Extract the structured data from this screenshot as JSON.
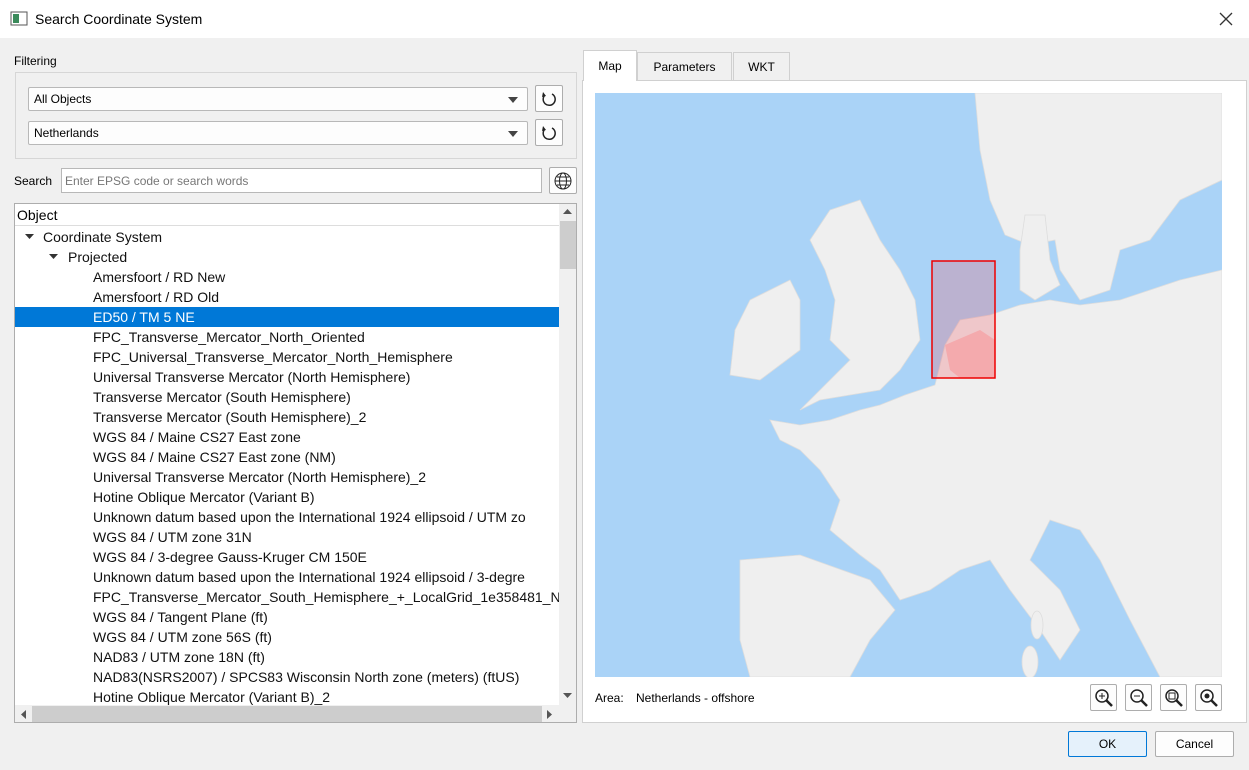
{
  "window": {
    "title": "Search Coordinate System"
  },
  "filtering": {
    "label": "Filtering",
    "object_type": "All Objects",
    "region": "Netherlands"
  },
  "search": {
    "label": "Search",
    "placeholder": "Enter EPSG code or search words"
  },
  "tree": {
    "header": "Object",
    "root": "Coordinate System",
    "group": "Projected",
    "items": [
      "Amersfoort / RD New",
      "Amersfoort / RD Old",
      "ED50 / TM 5 NE",
      "FPC_Transverse_Mercator_North_Oriented",
      "FPC_Universal_Transverse_Mercator_North_Hemisphere",
      "Universal Transverse Mercator (North Hemisphere)",
      "Transverse Mercator (South Hemisphere)",
      "Transverse Mercator (South Hemisphere)_2",
      "WGS 84 / Maine CS27 East zone",
      "WGS 84 / Maine CS27 East zone (NM)",
      "Universal Transverse Mercator (North Hemisphere)_2",
      "Hotine Oblique Mercator (Variant B)",
      "Unknown datum based upon the International 1924 ellipsoid / UTM zo",
      "WGS 84 / UTM zone 31N",
      "WGS 84 / 3-degree Gauss-Kruger CM 150E",
      "Unknown datum based upon the International 1924 ellipsoid / 3-degre",
      "FPC_Transverse_Mercator_South_Hemisphere_+_LocalGrid_1e358481_N",
      "WGS 84 / Tangent Plane (ft)",
      "WGS 84 / UTM zone 56S (ft)",
      "NAD83 / UTM zone 18N (ft)",
      "NAD83(NSRS2007) / SPCS83 Wisconsin North zone (meters) (ftUS)",
      "Hotine Oblique Mercator (Variant B)_2"
    ]
  },
  "tabs": [
    "Map",
    "Parameters",
    "WKT"
  ],
  "area": {
    "label": "Area:",
    "value": "Netherlands - offshore"
  },
  "buttons": {
    "ok": "OK",
    "cancel": "Cancel"
  }
}
